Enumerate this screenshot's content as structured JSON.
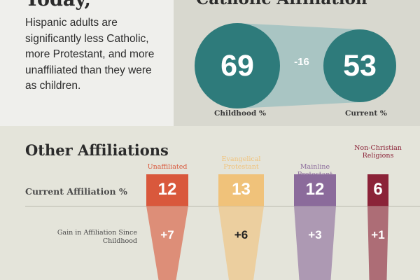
{
  "left_panel": {
    "heading": "Today,",
    "text": "Hispanic adults are significantly less Catholic, more Protestant, and more unaffiliated than they were as children."
  },
  "catholic": {
    "title": "Catholic Affiliation",
    "difference_label": "-16",
    "childhood_label": "Childhood %",
    "current_label": "Current %"
  },
  "other": {
    "title": "Other Affiliations",
    "current_row_label": "Current Affiliation %",
    "gain_row_label": "Gain in Affiliation Since Childhood"
  },
  "colors": {
    "catholic": "#2e7b7b",
    "unaffiliated": "#d9583c",
    "evangelical": "#f0c27a",
    "mainline": "#8b6b9b",
    "non_christian": "#8b2338"
  },
  "chart_data": [
    {
      "type": "bar",
      "title": "Catholic Affiliation",
      "categories": [
        "Childhood %",
        "Current %"
      ],
      "values": [
        69,
        53
      ],
      "difference": -16
    },
    {
      "type": "bar",
      "title": "Other Affiliations",
      "categories": [
        "Unaffiliated",
        "Evangelical Protestant",
        "Mainline Protestant",
        "Non-Christian Religions"
      ],
      "series": [
        {
          "name": "Current Affiliation %",
          "values": [
            12,
            13,
            12,
            6
          ]
        },
        {
          "name": "Gain in Affiliation Since Childhood",
          "values": [
            7,
            6,
            3,
            1
          ]
        }
      ],
      "current_labels": [
        "12",
        "13",
        "12",
        "6"
      ],
      "gain_labels": [
        "+7",
        "+6",
        "+3",
        "+1"
      ]
    }
  ]
}
